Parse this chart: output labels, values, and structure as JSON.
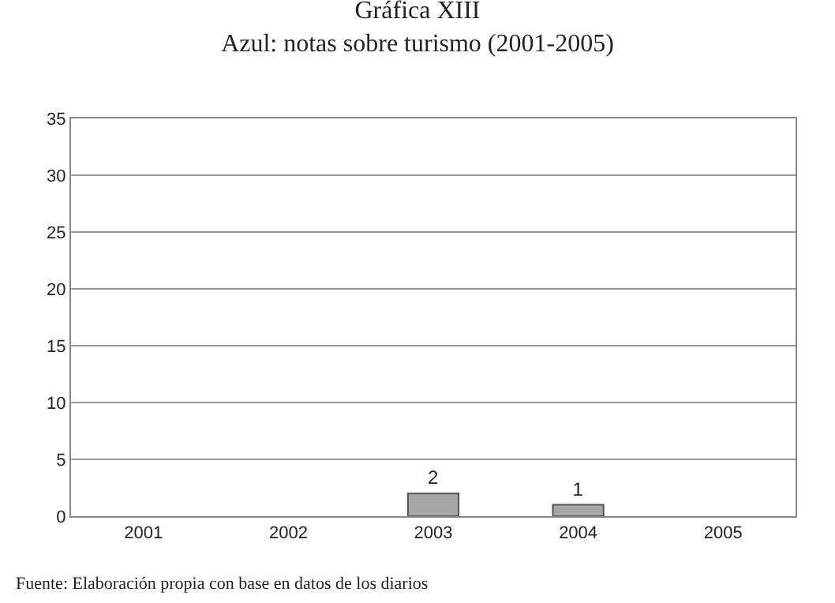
{
  "chart_data": {
    "type": "bar",
    "title": "Gráfica XIII",
    "subtitle": "Azul: notas sobre turismo (2001-2005)",
    "categories": [
      "2001",
      "2002",
      "2003",
      "2004",
      "2005"
    ],
    "values": [
      0,
      0,
      2,
      1,
      0
    ],
    "color": "#a6a6a6",
    "value_labels": [
      null,
      null,
      "2",
      "1",
      null
    ],
    "ylim": [
      0,
      35
    ],
    "yticks": [
      0,
      5,
      10,
      15,
      20,
      25,
      30,
      35
    ],
    "grid": "y",
    "annotations": [
      "Fuente: Elaboración propia con base en datos de los diarios"
    ]
  }
}
